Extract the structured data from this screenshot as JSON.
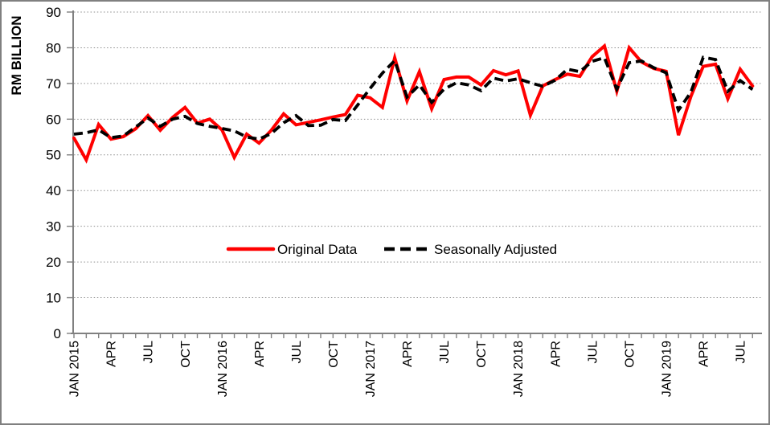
{
  "figure": {
    "y_axis_title": "RM BILLION",
    "y_ticks": [
      0,
      10,
      20,
      30,
      40,
      50,
      60,
      70,
      80,
      90
    ],
    "x_axis_labels": [
      "JAN 2015",
      "APR",
      "JUL",
      "OCT",
      "JAN 2016",
      "APR",
      "JUL",
      "OCT",
      "JAN 2017",
      "APR",
      "JUL",
      "OCT",
      "JAN 2018",
      "APR",
      "JUL",
      "OCT",
      "JAN 2019",
      "APR",
      "JUL"
    ],
    "legend": [
      {
        "label": "Original Data",
        "color": "#ff0000",
        "style": "solid"
      },
      {
        "label": "Seasonally Adjusted",
        "color": "#000000",
        "style": "dashed"
      }
    ],
    "colors": {
      "original_series": "#ff0000",
      "adjusted_series": "#000000",
      "axis": "#808080",
      "gridline": "#8c8c8c",
      "text": "#000000",
      "frame": "#808080",
      "background": "#ffffff"
    }
  },
  "chart_data": {
    "type": "line",
    "title": "",
    "xlabel": "",
    "ylabel": "RM BILLION",
    "ylim": [
      0,
      90
    ],
    "y_tick_step": 10,
    "grid": true,
    "gridline_style": "dotted",
    "legend_position": "inside-center-lower",
    "x_tick_label_rotation_deg": 90,
    "x_labeled_every_n_months": 3,
    "x": [
      "JAN 2015",
      "FEB 2015",
      "MAR 2015",
      "APR 2015",
      "MAY 2015",
      "JUN 2015",
      "JUL 2015",
      "AUG 2015",
      "SEP 2015",
      "OCT 2015",
      "NOV 2015",
      "DEC 2015",
      "JAN 2016",
      "FEB 2016",
      "MAR 2016",
      "APR 2016",
      "MAY 2016",
      "JUN 2016",
      "JUL 2016",
      "AUG 2016",
      "SEP 2016",
      "OCT 2016",
      "NOV 2016",
      "DEC 2016",
      "JAN 2017",
      "FEB 2017",
      "MAR 2017",
      "APR 2017",
      "MAY 2017",
      "JUN 2017",
      "JUL 2017",
      "AUG 2017",
      "SEP 2017",
      "OCT 2017",
      "NOV 2017",
      "DEC 2017",
      "JAN 2018",
      "FEB 2018",
      "MAR 2018",
      "APR 2018",
      "MAY 2018",
      "JUN 2018",
      "JUL 2018",
      "AUG 2018",
      "SEP 2018",
      "OCT 2018",
      "NOV 2018",
      "DEC 2018",
      "JAN 2019",
      "FEB 2019",
      "MAR 2019",
      "APR 2019",
      "MAY 2019",
      "JUN 2019",
      "JUL 2019",
      "AUG 2019"
    ],
    "series": [
      {
        "name": "Original Data",
        "color": "#ff0000",
        "style": "solid",
        "values": [
          54.7,
          48.6,
          58.5,
          54.4,
          55.1,
          57.3,
          61.0,
          56.9,
          60.5,
          63.3,
          58.9,
          60.0,
          57.0,
          49.3,
          55.8,
          53.3,
          56.9,
          61.5,
          58.4,
          59.1,
          59.8,
          60.6,
          61.3,
          66.7,
          66.0,
          63.3,
          77.2,
          65.1,
          73.3,
          62.9,
          71.1,
          71.8,
          71.8,
          69.6,
          73.6,
          72.4,
          73.5,
          61.1,
          69.3,
          71.1,
          72.6,
          72.0,
          77.5,
          80.5,
          67.8,
          80.0,
          76.0,
          74.2,
          73.4,
          55.5,
          66.3,
          74.8,
          75.4,
          65.7,
          74.0,
          69.3
        ]
      },
      {
        "name": "Seasonally Adjusted",
        "color": "#000000",
        "style": "dashed",
        "values": [
          55.8,
          56.2,
          57.0,
          54.8,
          55.3,
          57.8,
          60.3,
          58.0,
          60.0,
          60.8,
          58.8,
          58.0,
          57.4,
          56.7,
          55.0,
          54.4,
          56.0,
          59.0,
          61.0,
          58.2,
          58.3,
          59.9,
          59.6,
          64.0,
          68.6,
          72.9,
          76.4,
          66.2,
          69.6,
          64.7,
          68.4,
          70.2,
          69.6,
          68.0,
          71.5,
          70.7,
          71.3,
          70.2,
          69.2,
          70.9,
          74.0,
          73.3,
          76.2,
          77.2,
          68.4,
          75.8,
          76.3,
          74.4,
          73.0,
          62.5,
          67.5,
          77.3,
          76.7,
          67.8,
          70.8,
          68.3
        ]
      }
    ]
  }
}
